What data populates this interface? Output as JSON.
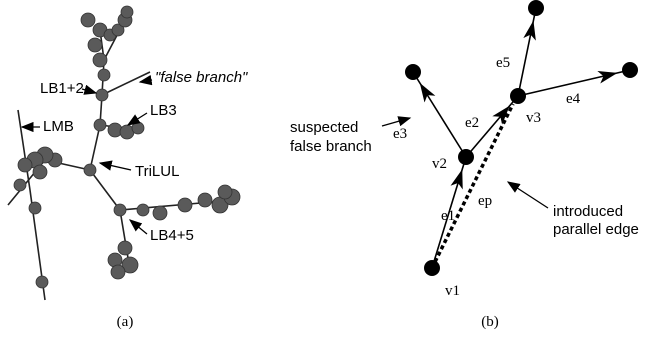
{
  "panel_a": {
    "caption": "(a)",
    "labels": {
      "lb12": "LB1+2",
      "false_branch": "\"false branch\"",
      "lmb": "LMB",
      "lb3": "LB3",
      "trilul": "TriLUL",
      "lb45": "LB4+5"
    }
  },
  "panel_b": {
    "caption": "(b)",
    "nodes": {
      "v1": "v1",
      "v2": "v2",
      "v3": "v3"
    },
    "edges": {
      "e1": "e1",
      "e2": "e2",
      "e3": "e3",
      "e4": "e4",
      "e5": "e5",
      "ep": "ep"
    },
    "annotations": {
      "suspected": [
        "suspected",
        "false branch"
      ],
      "introduced": [
        "introduced",
        "parallel edge"
      ]
    }
  }
}
